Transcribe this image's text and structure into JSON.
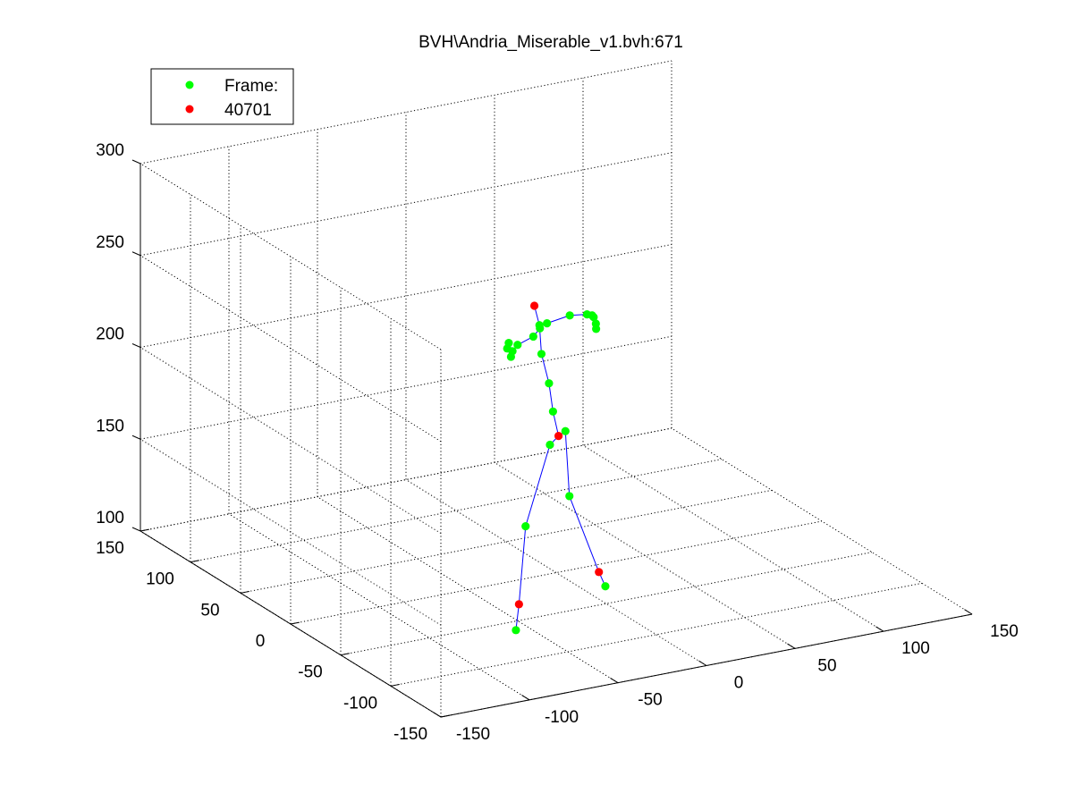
{
  "chart_data": {
    "type": "scatter3d",
    "title": "BVH\\Andria_Miserable_v1.bvh:671",
    "xlabel": "",
    "ylabel": "",
    "zlabel": "",
    "xlim": [
      -150,
      150
    ],
    "ylim": [
      -150,
      150
    ],
    "zlim": [
      100,
      300
    ],
    "x_ticks": [
      -150,
      -100,
      -50,
      0,
      50,
      100,
      150
    ],
    "y_ticks": [
      -150,
      -100,
      -50,
      0,
      50,
      100,
      150
    ],
    "z_ticks": [
      100,
      150,
      200,
      250,
      300
    ],
    "x_tick_labels": [
      "-150",
      "-100",
      "-50",
      "0",
      "50",
      "100",
      "150"
    ],
    "y_tick_labels": [
      "-150",
      "-100",
      "-50",
      "0",
      "50",
      "100",
      "150"
    ],
    "z_tick_labels": [
      "100",
      "150",
      "200",
      "250",
      "300"
    ],
    "grid": true,
    "legend": {
      "placement": "top-left",
      "entries": [
        {
          "label": "Frame:",
          "color": "#00ff00"
        },
        {
          "label": "40701",
          "color": "#ff0000"
        }
      ]
    },
    "colors": {
      "joint": "#00ff00",
      "marked_joint": "#ff0000",
      "bone": "#0000ff",
      "axes": "#000000",
      "grid": "#000000"
    },
    "joints": [
      {
        "name": "hips",
        "x": -10,
        "y": -20,
        "z": 183,
        "marked": true
      },
      {
        "name": "spine",
        "x": -12,
        "y": -18,
        "z": 196,
        "marked": false
      },
      {
        "name": "spine1",
        "x": -12,
        "y": -14,
        "z": 210,
        "marked": false
      },
      {
        "name": "spine2",
        "x": -14,
        "y": -10,
        "z": 225,
        "marked": false
      },
      {
        "name": "neck",
        "x": -14,
        "y": -8,
        "z": 240,
        "marked": false
      },
      {
        "name": "head_top",
        "x": -18,
        "y": -10,
        "z": 252,
        "marked": true
      },
      {
        "name": "l_clavicle",
        "x": -12,
        "y": -12,
        "z": 242,
        "marked": false
      },
      {
        "name": "l_shoulder",
        "x": 2,
        "y": -10,
        "z": 243,
        "marked": false
      },
      {
        "name": "l_elbow",
        "x": 14,
        "y": -6,
        "z": 240,
        "marked": false
      },
      {
        "name": "l_hand_1",
        "x": 18,
        "y": -4,
        "z": 238,
        "marked": false
      },
      {
        "name": "l_hand_2",
        "x": 19,
        "y": -6,
        "z": 234,
        "marked": false
      },
      {
        "name": "l_hand_3",
        "x": 20,
        "y": -2,
        "z": 236,
        "marked": false
      },
      {
        "name": "l_hand_4",
        "x": 18,
        "y": -8,
        "z": 232,
        "marked": false
      },
      {
        "name": "r_clavicle",
        "x": -16,
        "y": -12,
        "z": 240,
        "marked": false
      },
      {
        "name": "r_shoulder",
        "x": -22,
        "y": -16,
        "z": 238,
        "marked": false
      },
      {
        "name": "r_elbow",
        "x": -32,
        "y": -18,
        "z": 236,
        "marked": false
      },
      {
        "name": "r_hand_1",
        "x": -36,
        "y": -20,
        "z": 234,
        "marked": false
      },
      {
        "name": "r_hand_2",
        "x": -37,
        "y": -18,
        "z": 238,
        "marked": false
      },
      {
        "name": "r_hand_3",
        "x": -38,
        "y": -22,
        "z": 232,
        "marked": false
      },
      {
        "name": "r_hand_4",
        "x": -39,
        "y": -20,
        "z": 236,
        "marked": false
      },
      {
        "name": "l_hip",
        "x": -5,
        "y": -18,
        "z": 184,
        "marked": false
      },
      {
        "name": "l_knee",
        "x": -5,
        "y": -22,
        "z": 150,
        "marked": false
      },
      {
        "name": "l_ankle",
        "x": 6,
        "y": -32,
        "z": 110,
        "marked": true
      },
      {
        "name": "l_toe",
        "x": 4,
        "y": -42,
        "z": 106,
        "marked": false
      },
      {
        "name": "r_hip",
        "x": -16,
        "y": -22,
        "z": 180,
        "marked": false
      },
      {
        "name": "r_knee",
        "x": -32,
        "y": -26,
        "z": 140,
        "marked": false
      },
      {
        "name": "r_ankle",
        "x": -38,
        "y": -30,
        "z": 100,
        "marked": true
      },
      {
        "name": "r_toe",
        "x": -42,
        "y": -34,
        "z": 88,
        "marked": false
      }
    ],
    "bones": [
      [
        "hips",
        "spine"
      ],
      [
        "spine",
        "spine1"
      ],
      [
        "spine1",
        "spine2"
      ],
      [
        "spine2",
        "neck"
      ],
      [
        "neck",
        "head_top"
      ],
      [
        "neck",
        "l_clavicle"
      ],
      [
        "l_clavicle",
        "l_shoulder"
      ],
      [
        "l_shoulder",
        "l_elbow"
      ],
      [
        "l_elbow",
        "l_hand_1"
      ],
      [
        "l_hand_1",
        "l_hand_2"
      ],
      [
        "l_hand_1",
        "l_hand_3"
      ],
      [
        "l_hand_2",
        "l_hand_4"
      ],
      [
        "neck",
        "r_clavicle"
      ],
      [
        "r_clavicle",
        "r_shoulder"
      ],
      [
        "r_shoulder",
        "r_elbow"
      ],
      [
        "r_elbow",
        "r_hand_1"
      ],
      [
        "r_hand_1",
        "r_hand_2"
      ],
      [
        "r_hand_1",
        "r_hand_3"
      ],
      [
        "r_hand_3",
        "r_hand_4"
      ],
      [
        "hips",
        "l_hip"
      ],
      [
        "l_hip",
        "l_knee"
      ],
      [
        "l_knee",
        "l_ankle"
      ],
      [
        "l_ankle",
        "l_toe"
      ],
      [
        "hips",
        "r_hip"
      ],
      [
        "r_hip",
        "r_knee"
      ],
      [
        "r_knee",
        "r_ankle"
      ],
      [
        "r_ankle",
        "r_toe"
      ]
    ]
  }
}
